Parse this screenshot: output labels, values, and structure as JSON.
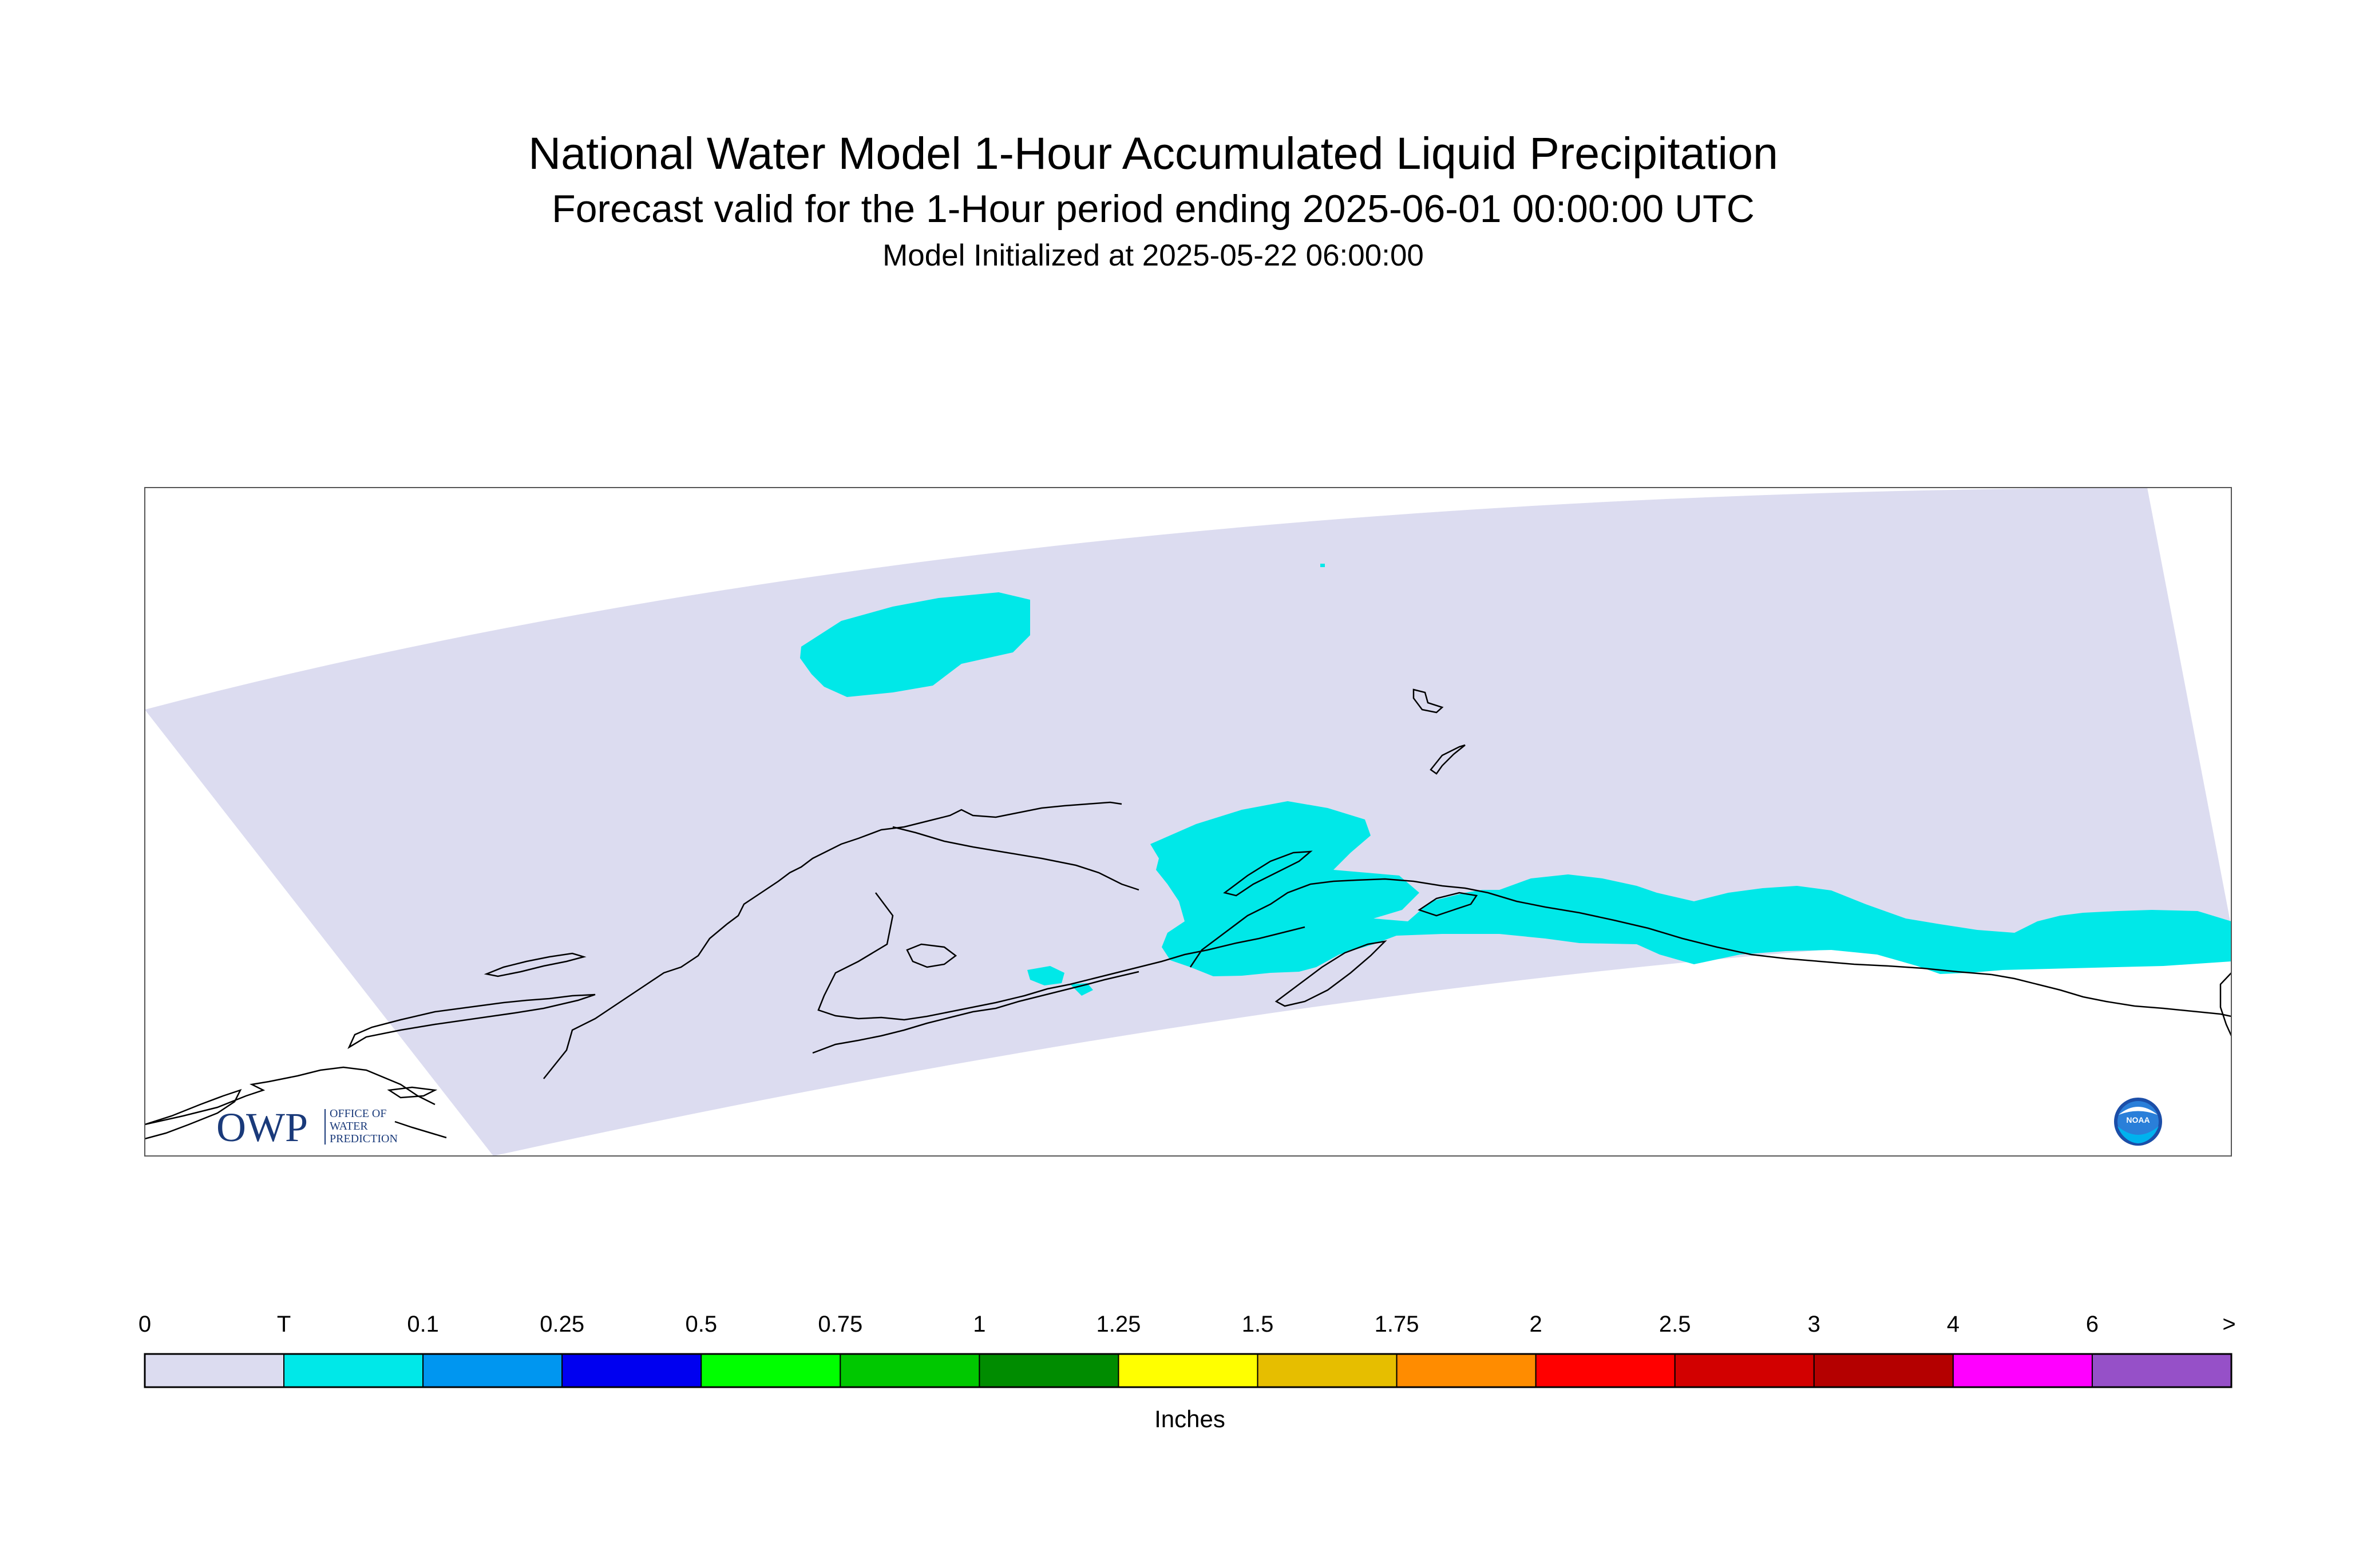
{
  "header": {
    "title": "National Water Model 1-Hour Accumulated Liquid Precipitation",
    "subtitle": "Forecast valid for the 1-Hour period ending 2025-06-01 00:00:00 UTC",
    "initialized": "Model Initialized at 2025-05-22 06:00:00"
  },
  "legend": {
    "units": "Inches",
    "labels": [
      "0",
      "T",
      "0.1",
      "0.25",
      "0.5",
      "0.75",
      "1",
      "1.25",
      "1.5",
      "1.75",
      "2",
      "2.5",
      "3",
      "4",
      "6",
      ">"
    ],
    "colors": [
      "#dcdcf0",
      "#00e8e8",
      "#0096f0",
      "#0000f0",
      "#00ff00",
      "#00c800",
      "#008c00",
      "#ffff00",
      "#e6be00",
      "#ff8c00",
      "#ff0000",
      "#d20000",
      "#b40000",
      "#ff00ff",
      "#9650c8"
    ]
  },
  "colors": {
    "domain_fill": "#dcdcf0",
    "trace_precip": "#00e8e8",
    "coastline": "#000000"
  },
  "logos": {
    "owp_mark": "OWP",
    "owp_text_1": "OFFICE OF",
    "owp_text_2": "WATER",
    "owp_text_3": "PREDICTION",
    "noaa_mark": "NOAA"
  }
}
